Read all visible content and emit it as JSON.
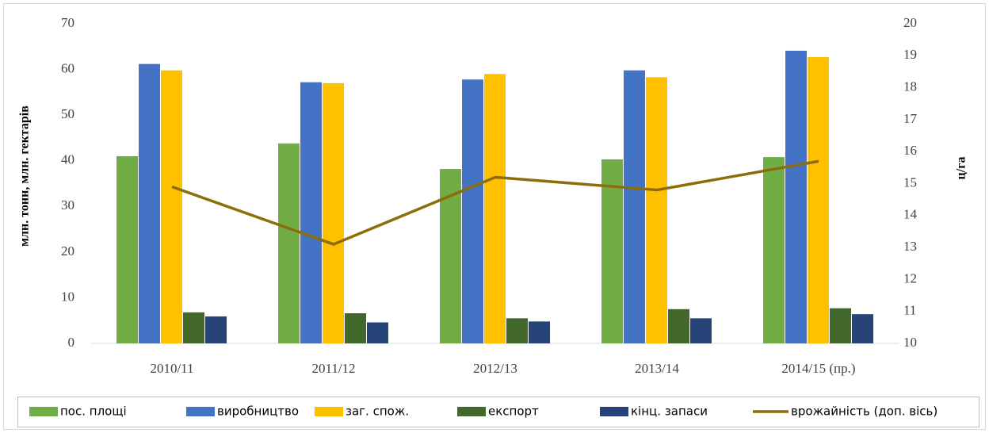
{
  "chart_data": {
    "type": "bar",
    "ylabel": "млн. тонн, млн. гектарів",
    "y2label": "ц/га",
    "categories": [
      "2010/11",
      "2011/12",
      "2012/13",
      "2013/14",
      "2014/15 (пр.)"
    ],
    "series": [
      {
        "name": "пос. площі",
        "color": "#70ad47",
        "values": [
          41.0,
          43.8,
          38.2,
          40.3,
          40.8
        ]
      },
      {
        "name": "виробництво",
        "color": "#4472c4",
        "values": [
          61.2,
          57.2,
          57.8,
          59.8,
          64.1
        ]
      },
      {
        "name": "заг. спож.",
        "color": "#ffc000",
        "values": [
          59.8,
          57.0,
          59.0,
          58.3,
          62.7
        ]
      },
      {
        "name": "експорт",
        "color": "#43682b",
        "values": [
          6.8,
          6.6,
          5.5,
          7.5,
          7.7
        ]
      },
      {
        "name": "кінц. запаси",
        "color": "#264478",
        "values": [
          5.9,
          4.6,
          4.8,
          5.5,
          6.4
        ]
      },
      {
        "name": "врожайність (доп. вісь)",
        "color": "#8c6d0a",
        "type": "line",
        "axis": "y2",
        "values": [
          14.9,
          13.1,
          15.2,
          14.8,
          15.7
        ]
      }
    ],
    "ylim": [
      0,
      70
    ],
    "yticks": [
      0,
      10,
      20,
      30,
      40,
      50,
      60,
      70
    ],
    "y2lim": [
      10,
      20
    ],
    "y2ticks": [
      10,
      11,
      12,
      13,
      14,
      15,
      16,
      17,
      18,
      19,
      20
    ],
    "legend": "bottom"
  }
}
